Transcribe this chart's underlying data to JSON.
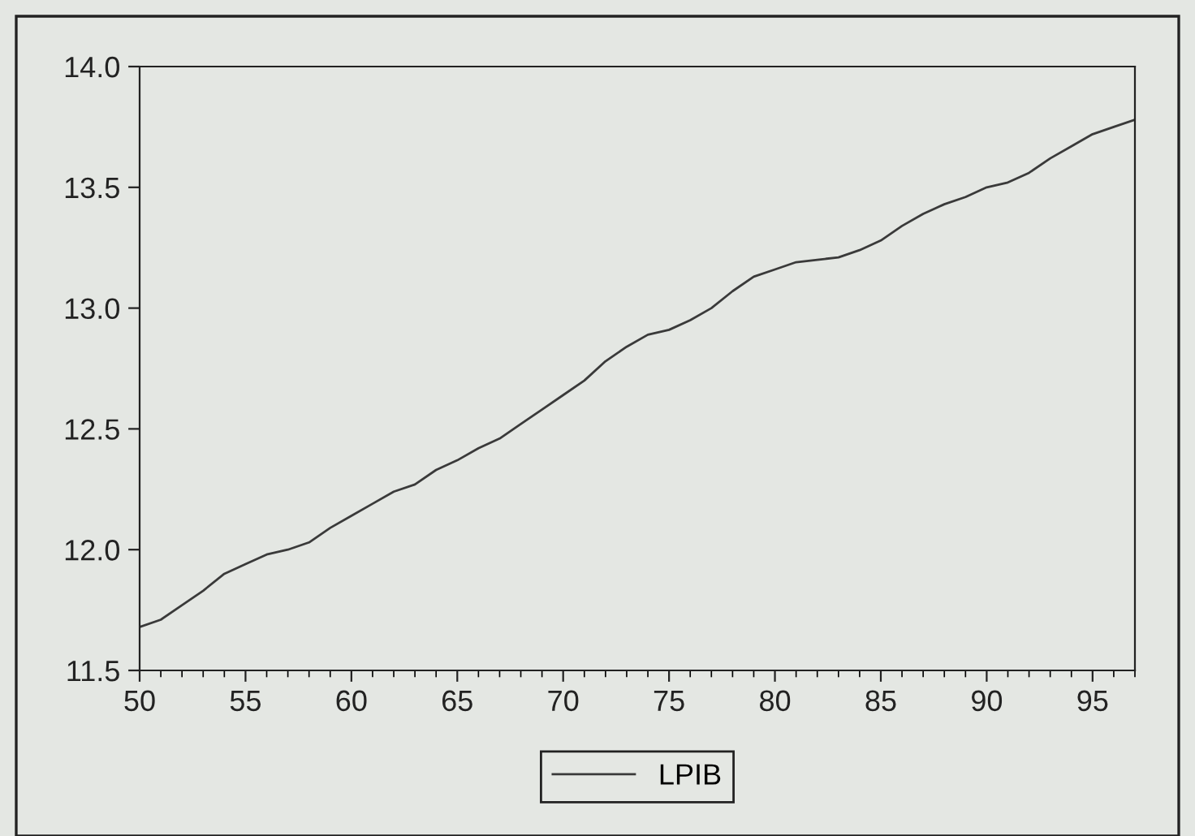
{
  "chart_data": {
    "type": "line",
    "x": [
      50,
      51,
      52,
      53,
      54,
      55,
      56,
      57,
      58,
      59,
      60,
      61,
      62,
      63,
      64,
      65,
      66,
      67,
      68,
      69,
      70,
      71,
      72,
      73,
      74,
      75,
      76,
      77,
      78,
      79,
      80,
      81,
      82,
      83,
      84,
      85,
      86,
      87,
      88,
      89,
      90,
      91,
      92,
      93,
      94,
      95,
      96,
      97
    ],
    "series": [
      {
        "name": "LPIB",
        "color": "#3a3a3a",
        "values": [
          11.68,
          11.71,
          11.77,
          11.83,
          11.9,
          11.94,
          11.98,
          12.0,
          12.03,
          12.09,
          12.14,
          12.19,
          12.24,
          12.27,
          12.33,
          12.37,
          12.42,
          12.46,
          12.52,
          12.58,
          12.64,
          12.7,
          12.78,
          12.84,
          12.89,
          12.91,
          12.95,
          13.0,
          13.07,
          13.13,
          13.16,
          13.19,
          13.2,
          13.21,
          13.24,
          13.28,
          13.34,
          13.39,
          13.43,
          13.46,
          13.5,
          13.52,
          13.56,
          13.62,
          13.67,
          13.72,
          13.75,
          13.78
        ]
      }
    ],
    "xlim": [
      50,
      97
    ],
    "ylim": [
      11.5,
      14.0
    ],
    "xticks": [
      50,
      55,
      60,
      65,
      70,
      75,
      80,
      85,
      90,
      95
    ],
    "yticks": [
      {
        "value": 11.5,
        "label": "11.5"
      },
      {
        "value": 12.0,
        "label": "12.0"
      },
      {
        "value": 12.5,
        "label": "12.5"
      },
      {
        "value": 13.0,
        "label": "13.0"
      },
      {
        "value": 13.5,
        "label": "13.5"
      },
      {
        "value": 14.0,
        "label": "14.0"
      }
    ],
    "legend": "bottom",
    "grid": false,
    "marker": "none",
    "line_style": "solid"
  }
}
